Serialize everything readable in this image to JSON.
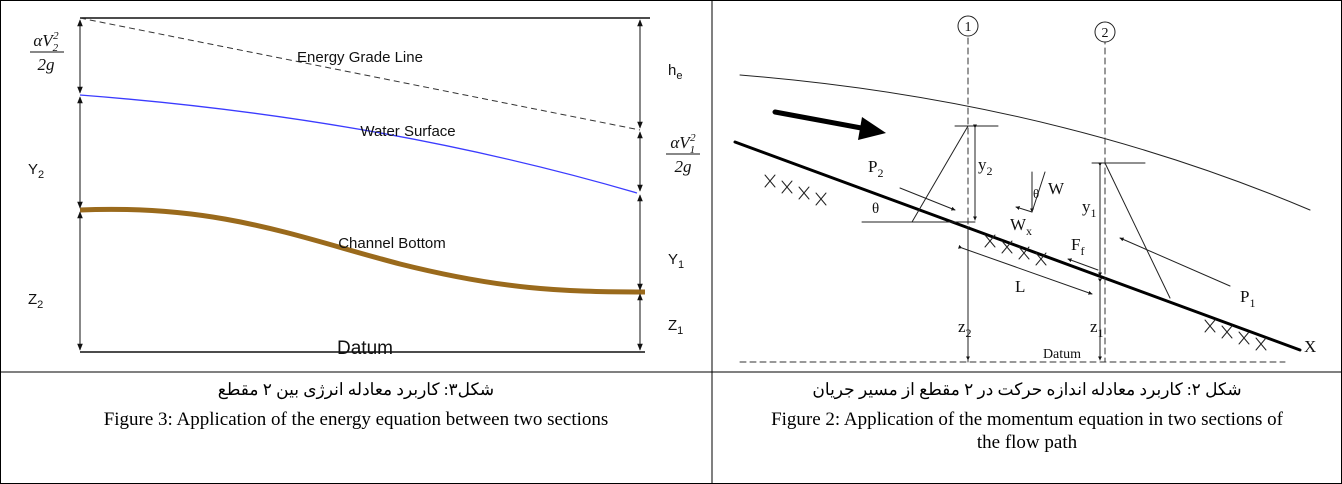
{
  "figure3": {
    "energy_head_upstream": {
      "numerator": "αV",
      "subscript": "2",
      "superscript": "2",
      "denominator": "2g"
    },
    "energy_grade_line": "Energy Grade Line",
    "head_loss": {
      "base": "h",
      "subscript": "e"
    },
    "water_surface": "Water Surface",
    "energy_head_downstream": {
      "numerator": "αV",
      "subscript": "1",
      "superscript": "2",
      "denominator": "2g"
    },
    "depth_upstream": {
      "base": "Y",
      "subscript": "2"
    },
    "channel_bottom": "Channel Bottom",
    "depth_downstream": {
      "base": "Y",
      "subscript": "1"
    },
    "elevation_upstream": {
      "base": "Z",
      "subscript": "2"
    },
    "elevation_downstream": {
      "base": "Z",
      "subscript": "1"
    },
    "datum": "Datum",
    "caption_fa": "شکل۳: کاربرد معادله انرژی بین ۲ مقطع",
    "caption_en": "Figure 3: Application of the energy equation between two sections"
  },
  "figure2": {
    "section_1": "1",
    "section_2": "2",
    "pressure_upstream": {
      "base": "P",
      "subscript": "2"
    },
    "depth_upstream": {
      "base": "y",
      "subscript": "2"
    },
    "weight": "W",
    "weight_angle": "θ",
    "slope_angle": "θ",
    "weight_component": {
      "base": "W",
      "subscript": "x"
    },
    "friction": {
      "base": "F",
      "subscript": "f"
    },
    "depth_downstream": {
      "base": "y",
      "subscript": "1"
    },
    "pressure_downstream": {
      "base": "P",
      "subscript": "1"
    },
    "length": "L",
    "elevation_upstream": {
      "base": "z",
      "subscript": "2"
    },
    "elevation_downstream": {
      "base": "z",
      "subscript": "1"
    },
    "datum": "Datum",
    "axis": "X",
    "caption_fa": "شکل ۲:  کاربرد معادله اندازه حرکت در ۲ مقطع از مسیر جریان",
    "caption_en": "Figure 2: Application of the momentum equation in two sections of the flow path"
  }
}
